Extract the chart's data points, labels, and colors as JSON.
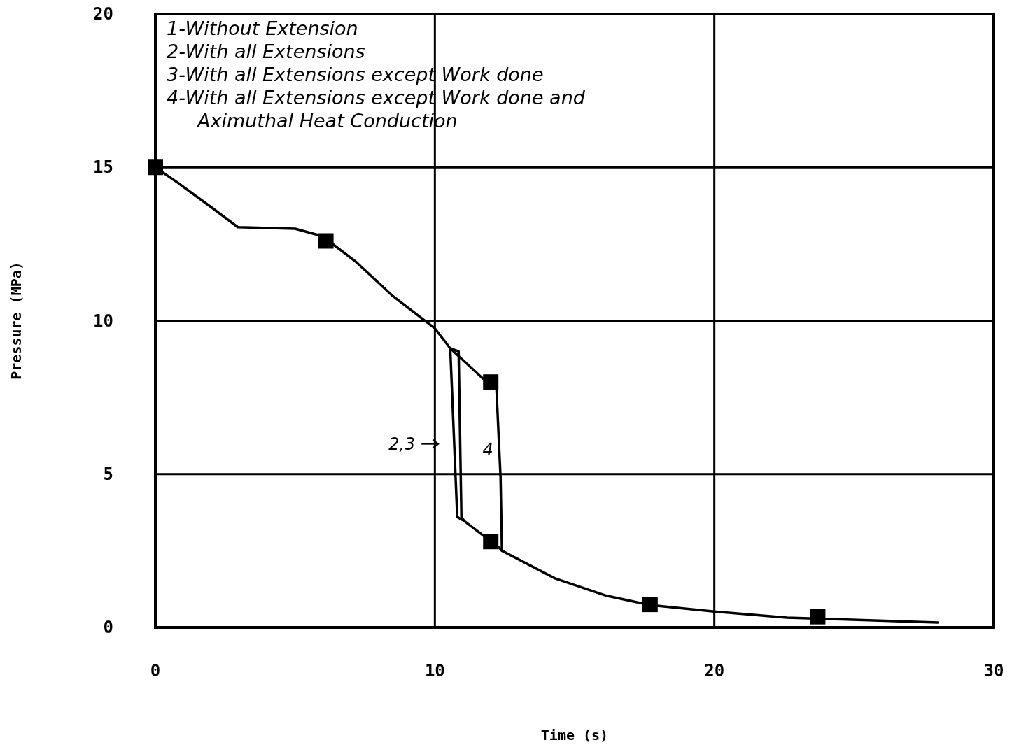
{
  "chart_data": {
    "type": "line",
    "xlabel": "Time (s)",
    "ylabel": "Pressure (MPa)",
    "xlim": [
      0,
      30
    ],
    "ylim": [
      0,
      20
    ],
    "xticks": [
      0,
      10,
      20,
      30
    ],
    "yticks": [
      0,
      5,
      10,
      15,
      20
    ],
    "grid": true,
    "line_style": "solid",
    "series": [
      {
        "color": "#000000",
        "x": [
          0,
          0.8,
          2.0,
          2.95,
          5.0,
          5.8,
          6.2,
          7.2,
          8.5,
          9.5,
          10.0,
          10.55,
          10.8,
          11.05,
          12.3,
          12.4,
          14.3,
          16.15,
          17.7,
          20,
          22.6,
          28.0
        ],
        "values": [
          15,
          14.5,
          13.7,
          13.05,
          13.0,
          12.8,
          12.6,
          11.9,
          10.8,
          10.1,
          9.75,
          9.1,
          3.6,
          3.47,
          2.6,
          2.5,
          1.6,
          1.03,
          0.73,
          0.52,
          0.32,
          0.16
        ]
      },
      {
        "color": "#000000",
        "x": [
          10.55,
          10.85,
          10.95,
          11.05
        ],
        "values": [
          9.1,
          9.0,
          3.6,
          3.47
        ]
      },
      {
        "color": "#000000",
        "x": [
          10.55,
          11.97,
          12.2,
          12.35,
          12.4
        ],
        "values": [
          9.1,
          7.9,
          7.85,
          4.9,
          2.5
        ]
      },
      {
        "type": "scatter",
        "marker": "square",
        "color": "#000000",
        "x": [
          0,
          6.1,
          12.0,
          12.0,
          17.7,
          23.7
        ],
        "values": [
          15,
          12.6,
          8.0,
          2.8,
          0.75,
          0.35
        ]
      }
    ],
    "annotations": [
      "1-Without Extension",
      "2-With all Extensions",
      "3-With all Extensions except Work done",
      "4-With all Extensions except Work done and",
      "Aximuthal Heat Conduction",
      "2,3",
      "4"
    ]
  }
}
